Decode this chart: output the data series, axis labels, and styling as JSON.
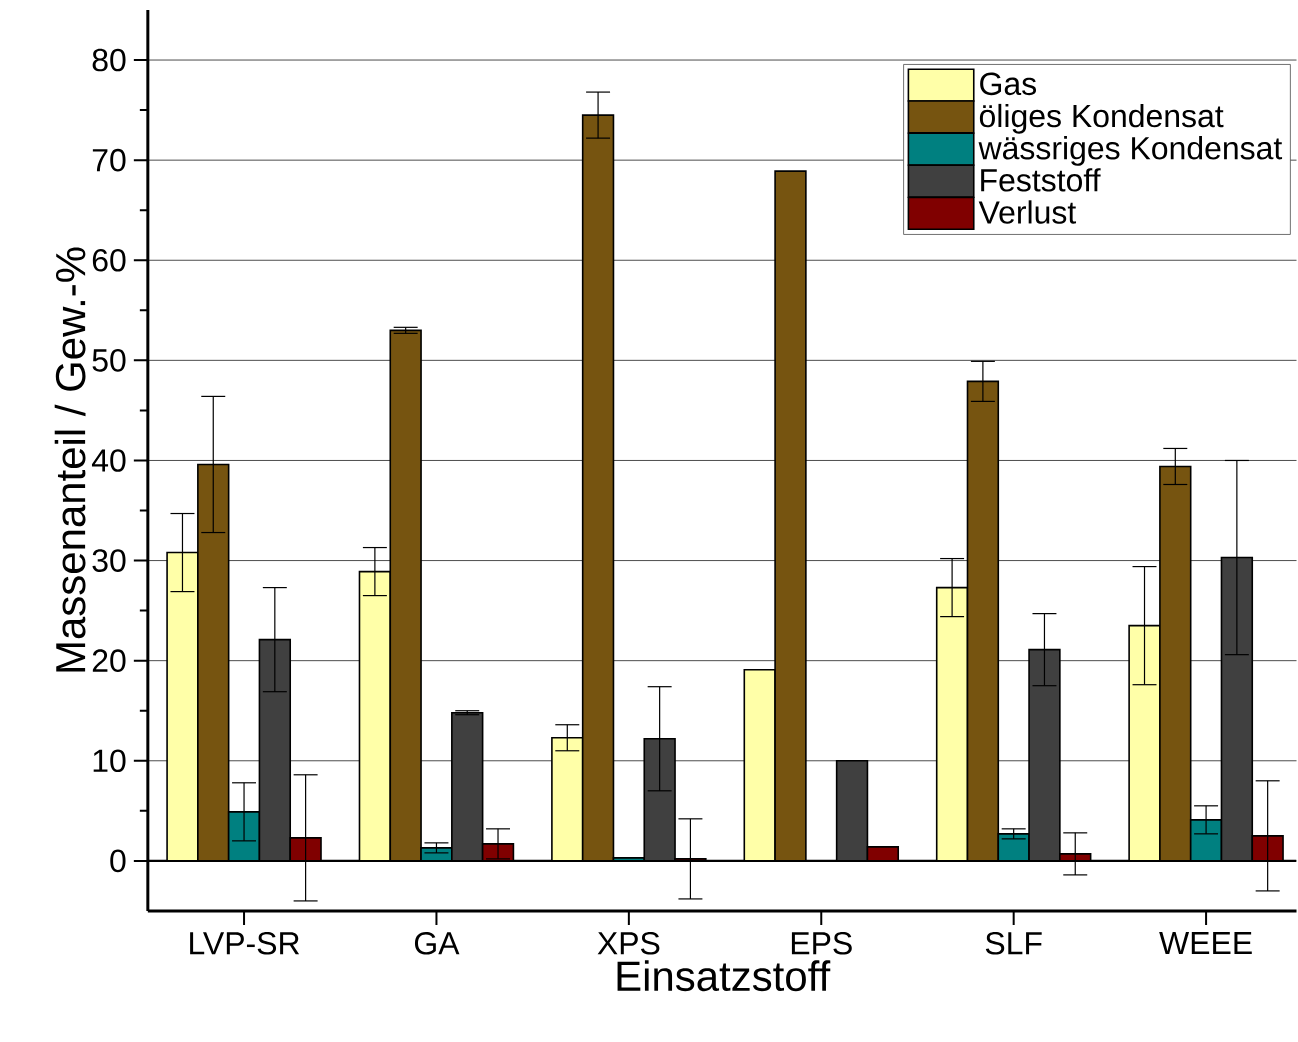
{
  "chart_data": {
    "type": "bar",
    "xlabel": "Einsatzstoff",
    "ylabel": "Massenanteil / Gew.-%",
    "categories": [
      "LVP-SR",
      "GA",
      "XPS",
      "EPS",
      "SLF",
      "WEEE"
    ],
    "series": [
      {
        "name": "Gas",
        "color": "#ffffa8",
        "values": [
          30.8,
          28.9,
          12.3,
          19.1,
          27.3,
          23.5
        ],
        "errors": [
          3.9,
          2.4,
          1.3,
          null,
          2.9,
          5.9
        ]
      },
      {
        "name": "öliges Kondensat",
        "color": "#765410",
        "values": [
          39.6,
          53.0,
          74.5,
          68.9,
          47.9,
          39.4
        ],
        "errors": [
          6.8,
          0.3,
          2.3,
          null,
          2.0,
          1.8
        ]
      },
      {
        "name": "wässriges Kondensat",
        "color": "#008080",
        "values": [
          4.9,
          1.3,
          0.3,
          null,
          2.7,
          4.1
        ],
        "errors": [
          2.9,
          0.5,
          null,
          null,
          0.5,
          1.4
        ]
      },
      {
        "name": "Feststoff",
        "color": "#404040",
        "values": [
          22.1,
          14.8,
          12.2,
          10.0,
          21.1,
          30.3
        ],
        "errors": [
          5.2,
          0.2,
          5.2,
          null,
          3.6,
          9.7
        ]
      },
      {
        "name": "Verlust",
        "color": "#800000",
        "values": [
          2.3,
          1.7,
          0.2,
          1.4,
          0.7,
          2.5
        ],
        "errors": [
          6.3,
          1.5,
          4.0,
          null,
          2.1,
          5.5
        ]
      }
    ],
    "ylim": [
      -5,
      85
    ],
    "yticks": [
      0,
      10,
      20,
      30,
      40,
      50,
      60,
      70,
      80
    ],
    "grid": "y",
    "legend": "top right",
    "ref_lines": [
      {
        "axis": "y",
        "value": 0
      }
    ]
  }
}
